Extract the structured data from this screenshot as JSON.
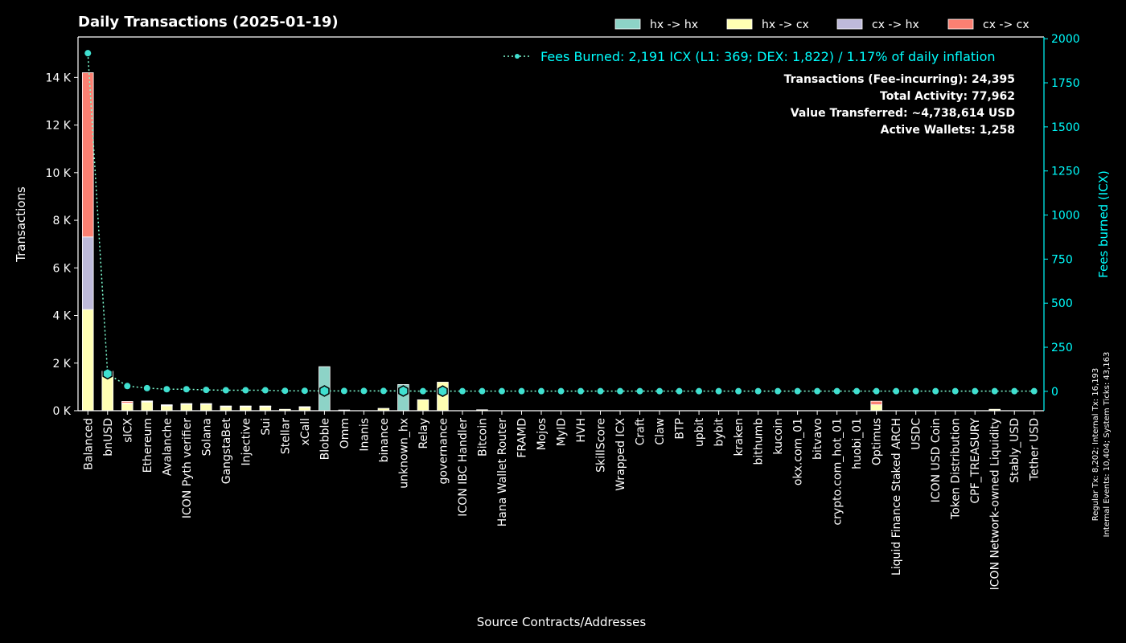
{
  "chart_data": {
    "type": "bar",
    "title": "Daily Transactions (2025-01-19)",
    "xlabel": "Source Contracts/Addresses",
    "ylabel": "Transactions",
    "y2label": "Fees burned (ICX)",
    "ylim": [
      0,
      15700
    ],
    "y2lim": [
      -110,
      2010
    ],
    "yticks": [
      0,
      2000,
      4000,
      6000,
      8000,
      10000,
      12000,
      14000
    ],
    "ytick_labels": [
      "0 K",
      "2 K",
      "4 K",
      "6 K",
      "8 K",
      "10 K",
      "12 K",
      "14 K"
    ],
    "y2ticks": [
      0,
      250,
      500,
      750,
      1000,
      1250,
      1500,
      1750,
      2000
    ],
    "y2tick_labels": [
      "0",
      "250",
      "500",
      "750",
      "1000",
      "1250",
      "1500",
      "1750",
      "2000"
    ],
    "legend_position": "top-right",
    "colors": {
      "hx -> hx": "#8dd3c7",
      "hx -> cx": "#ffffb3",
      "cx -> hx": "#bebada",
      "cx -> cx": "#fb8072",
      "fees": "#40e0d0",
      "y2axis": "#00ffff"
    },
    "categories": [
      "Balanced",
      "bnUSD",
      "sICX",
      "Ethereum",
      "Avalanche",
      "ICON Pyth verifier",
      "Solana",
      "GangstaBet",
      "Injective",
      "Sui",
      "Stellar",
      "xCall",
      "Blobble",
      "Omm",
      "Inanis",
      "binance",
      "unknown_hx",
      "Relay",
      "governance",
      "ICON IBC Handler",
      "Bitcoin",
      "Hana Wallet Router",
      "FRAMD",
      "Mojos",
      "MyID",
      "HVH",
      "SkillScore",
      "Wrapped ICX",
      "Craft",
      "Claw",
      "BTP",
      "upbit",
      "bybit",
      "kraken",
      "bithumb",
      "kucoin",
      "okx.com_01",
      "bitvavo",
      "crypto.com_hot_01",
      "huobi_01",
      "Optimus",
      "Liquid Finance Staked ARCH",
      "USDC",
      "ICON USD Coin",
      "Token Distribution",
      "CPF_TREASURY",
      "ICON Network-owned Liquidity",
      "Stably_USD",
      "Tether USD"
    ],
    "series": [
      {
        "name": "hx -> hx",
        "values": [
          0,
          0,
          0,
          0,
          0,
          0,
          0,
          0,
          0,
          0,
          0,
          0,
          1850,
          0,
          0,
          0,
          1100,
          0,
          0,
          0,
          0,
          0,
          0,
          0,
          0,
          0,
          0,
          0,
          0,
          0,
          0,
          0,
          0,
          0,
          0,
          0,
          0,
          0,
          0,
          0,
          0,
          0,
          0,
          0,
          0,
          0,
          0,
          0,
          0
        ]
      },
      {
        "name": "hx -> cx",
        "values": [
          4250,
          1550,
          300,
          380,
          220,
          280,
          280,
          180,
          180,
          180,
          60,
          150,
          0,
          30,
          0,
          100,
          0,
          460,
          1200,
          0,
          40,
          0,
          0,
          0,
          0,
          0,
          0,
          0,
          0,
          0,
          0,
          0,
          0,
          0,
          0,
          0,
          0,
          0,
          0,
          0,
          250,
          0,
          0,
          0,
          0,
          0,
          60,
          0,
          0
        ]
      },
      {
        "name": "cx -> hx",
        "values": [
          3050,
          50,
          20,
          10,
          10,
          10,
          10,
          10,
          10,
          10,
          0,
          10,
          0,
          0,
          0,
          0,
          0,
          0,
          0,
          0,
          0,
          0,
          0,
          0,
          0,
          0,
          0,
          0,
          0,
          0,
          0,
          0,
          0,
          0,
          0,
          0,
          0,
          0,
          0,
          0,
          0,
          0,
          0,
          0,
          0,
          0,
          0,
          0,
          0
        ]
      },
      {
        "name": "cx -> cx",
        "values": [
          6900,
          60,
          70,
          20,
          20,
          10,
          10,
          10,
          10,
          10,
          0,
          10,
          0,
          0,
          0,
          0,
          0,
          0,
          0,
          0,
          0,
          0,
          0,
          0,
          0,
          0,
          0,
          0,
          0,
          0,
          0,
          0,
          0,
          0,
          0,
          0,
          0,
          0,
          0,
          0,
          150,
          0,
          0,
          0,
          0,
          0,
          0,
          0,
          0
        ]
      }
    ],
    "fees_series": {
      "name": "Fees Burned: 2,191 ICX (L1: 369; DEX: 1,822) / 1.17% of daily inflation",
      "values": [
        1918,
        100,
        30,
        18,
        12,
        12,
        8,
        6,
        6,
        6,
        3,
        3,
        2,
        2,
        2,
        2,
        2,
        1,
        1,
        1,
        1,
        1,
        1,
        1,
        1,
        1,
        1,
        1,
        1,
        1,
        1,
        1,
        1,
        1,
        1,
        1,
        1,
        1,
        1,
        1,
        1,
        1,
        1,
        1,
        1,
        1,
        1,
        1,
        1
      ],
      "highlighted": [
        "bnUSD",
        "Blobble",
        "unknown_hx",
        "governance"
      ]
    },
    "annotations": [
      "Transactions (Fee-incurring): 24,395",
      "Total Activity: 77,962",
      "Value Transferred: ~4,738,614 USD",
      "Active Wallets: 1,258"
    ],
    "side_note": [
      "Regular Tx: 8,202; Internal Tx: 16,193",
      "Internal Events: 10,404; System Ticks: 43,163"
    ]
  }
}
